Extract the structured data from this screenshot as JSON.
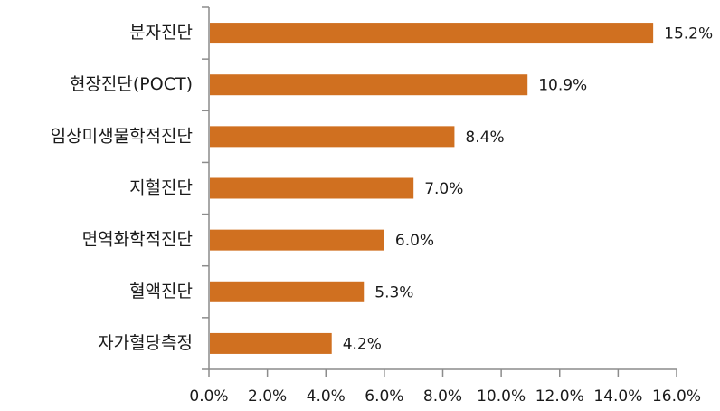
{
  "chart_data": {
    "type": "bar",
    "orientation": "horizontal",
    "categories": [
      "분자진단",
      "현장진단(POCT)",
      "임상미생물학적진단",
      "지혈진단",
      "면역화학적진단",
      "혈액진단",
      "자가혈당측정"
    ],
    "values": [
      15.2,
      10.9,
      8.4,
      7.0,
      6.0,
      5.3,
      4.2
    ],
    "value_labels": [
      "15.2%",
      "10.9%",
      "8.4%",
      "7.0%",
      "6.0%",
      "5.3%",
      "4.2%"
    ],
    "xlim": [
      0,
      16
    ],
    "x_ticks": [
      0,
      2,
      4,
      6,
      8,
      10,
      12,
      14,
      16
    ],
    "x_tick_labels": [
      "0.0%",
      "2.0%",
      "4.0%",
      "6.0%",
      "8.0%",
      "10.0%",
      "12.0%",
      "14.0%",
      "16.0%"
    ],
    "title": "",
    "xlabel": "",
    "ylabel": "",
    "grid": false,
    "bar_color": "#D07020",
    "axis_color": "#8C8C8C"
  }
}
